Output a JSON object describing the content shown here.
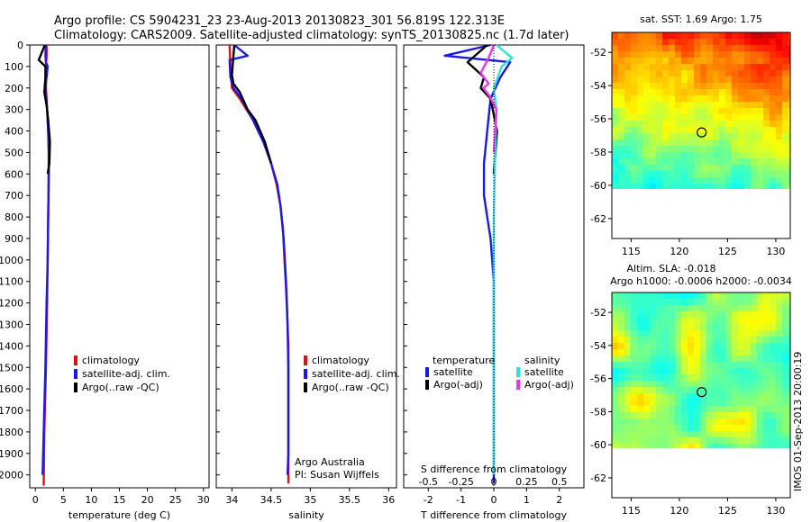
{
  "header": {
    "line1": "Argo profile: CS 5904231_23 23-Aug-2013 20130823_301 56.819S 122.313E",
    "line2": "Climatology: CARS2009. Satellite-adjusted climatology: synTS_20130825.nc (1.7d later)"
  },
  "colors": {
    "climatology": "#e01010",
    "satellite": "#1a1ae6",
    "argo": "#000000",
    "sal_satellite": "#33e0e0",
    "sal_argo": "#ee33ee"
  },
  "chart_data": [
    {
      "type": "line",
      "name": "temperature-profile",
      "xlabel": "temperature (deg C)",
      "xlim": [
        -1,
        31
      ],
      "xticks": [
        "0",
        "5",
        "10",
        "15",
        "20",
        "25",
        "30"
      ],
      "ylim": [
        2060,
        0
      ],
      "yticks": [
        "0",
        "100",
        "200",
        "300",
        "400",
        "500",
        "600",
        "700",
        "800",
        "900",
        "1000",
        "1100",
        "1200",
        "1300",
        "1400",
        "1500",
        "1600",
        "1700",
        "1800",
        "1900",
        "2000"
      ],
      "legend": [
        "climatology",
        "satellite-adj. clim.",
        "Argo(..raw -QC)"
      ],
      "series": [
        {
          "key": "climatology",
          "x": [
            2.0,
            2.0,
            1.9,
            1.9,
            2.1,
            2.3,
            2.4,
            2.4,
            2.3,
            2.2,
            2.1,
            1.9,
            1.6,
            1.5
          ],
          "y": [
            0,
            50,
            100,
            200,
            300,
            400,
            500,
            600,
            800,
            1000,
            1200,
            1500,
            1800,
            2050
          ]
        },
        {
          "key": "satellite",
          "x": [
            1.9,
            1.8,
            1.9,
            2.2,
            1.8,
            2.1,
            2.3,
            2.4,
            2.4,
            2.3,
            2.2,
            2.0,
            1.8,
            1.5,
            1.3
          ],
          "y": [
            0,
            50,
            80,
            100,
            200,
            300,
            400,
            500,
            600,
            800,
            1000,
            1200,
            1500,
            1800,
            2000
          ]
        },
        {
          "key": "argo",
          "x": [
            1.7,
            0.6,
            1.8,
            1.8,
            1.6,
            2.0,
            2.3,
            2.6,
            2.5,
            2.2
          ],
          "y": [
            0,
            70,
            100,
            150,
            220,
            280,
            350,
            450,
            550,
            600
          ]
        }
      ]
    },
    {
      "type": "line",
      "name": "salinity-profile",
      "xlabel": "salinity",
      "xlim": [
        33.8,
        36.1
      ],
      "xticks": [
        "34",
        "34.5",
        "35",
        "35.5",
        "36"
      ],
      "ylim": [
        2060,
        0
      ],
      "legend": [
        "climatology",
        "satellite-adj. clim.",
        "Argo(..raw -QC)"
      ],
      "annotation": [
        "Argo Australia",
        "PI: Susan Wijffels"
      ],
      "series": [
        {
          "key": "climatology",
          "x": [
            33.97,
            33.98,
            34.0,
            34.1,
            34.27,
            34.4,
            34.5,
            34.57,
            34.62,
            34.65,
            34.67,
            34.7,
            34.72,
            34.72,
            34.72
          ],
          "y": [
            0,
            100,
            200,
            250,
            350,
            450,
            550,
            650,
            750,
            850,
            1000,
            1200,
            1400,
            1700,
            2040
          ]
        },
        {
          "key": "satellite",
          "x": [
            34.03,
            34.2,
            33.97,
            33.98,
            34.02,
            34.12,
            34.27,
            34.4,
            34.5,
            34.58,
            34.62,
            34.66,
            34.69,
            34.71,
            34.72,
            34.72,
            34.72,
            34.71
          ],
          "y": [
            0,
            50,
            70,
            150,
            200,
            250,
            350,
            450,
            550,
            650,
            750,
            900,
            1100,
            1300,
            1500,
            1700,
            1900,
            2000
          ]
        },
        {
          "key": "argo",
          "x": [
            34.03,
            34.0,
            34.02,
            34.1,
            34.2,
            34.3,
            34.42,
            34.5
          ],
          "y": [
            0,
            140,
            180,
            220,
            300,
            350,
            450,
            550
          ]
        }
      ]
    },
    {
      "type": "line",
      "name": "difference-profile",
      "xlabel": "T difference from climatology",
      "xlabel_top": "S difference from climatology",
      "xlim": [
        -2.75,
        2.75
      ],
      "xticks": [
        "-2",
        "-1",
        "0",
        "1",
        "2"
      ],
      "xticks_top": [
        "-0.5",
        "-0.25",
        "0",
        "0.25",
        "0.5"
      ],
      "ylim": [
        2060,
        0
      ],
      "legend": {
        "temperature_title": "temperature",
        "salinity_title": "salinity",
        "t_satellite": "satellite",
        "t_argo": "Argo(-adj)",
        "s_satellite": "satellite",
        "s_argo": "Argo(-adj)"
      },
      "series": [
        {
          "key": "satellite",
          "x": [
            -0.1,
            -1.5,
            0.5,
            0.2,
            -0.1,
            -0.2,
            -0.3,
            -0.3,
            -0.2,
            -0.1,
            0.0,
            0.0,
            0.0
          ],
          "y": [
            0,
            50,
            80,
            150,
            250,
            400,
            550,
            700,
            800,
            900,
            1100,
            1500,
            2040
          ]
        },
        {
          "key": "argo",
          "x": [
            -0.2,
            -0.8,
            -0.3,
            -0.4,
            -0.1,
            0.1,
            0.0
          ],
          "y": [
            0,
            80,
            150,
            200,
            250,
            400,
            600
          ]
        },
        {
          "key": "sal_satellite",
          "x": [
            0.02,
            0.14,
            0.06,
            0.0,
            0.02,
            0.01,
            0.0,
            0.0,
            0.0
          ],
          "y": [
            0,
            60,
            100,
            200,
            300,
            500,
            800,
            1200,
            2000
          ]
        },
        {
          "key": "sal_argo",
          "x": [
            0.0,
            -0.04,
            -0.1,
            -0.04,
            -0.08,
            -0.03,
            0.02,
            0.0
          ],
          "y": [
            0,
            60,
            130,
            180,
            200,
            240,
            300,
            500
          ]
        }
      ]
    },
    {
      "type": "heatmap",
      "name": "sst-map",
      "title": "sat. SST: 1.69 Argo: 1.75",
      "xlim": [
        113,
        131.5
      ],
      "ylim": [
        -63.2,
        -50.8
      ],
      "xticks": [
        "115",
        "120",
        "125",
        "130"
      ],
      "yticks": [
        "-52",
        "-54",
        "-56",
        "-58",
        "-60",
        "-62"
      ],
      "data_bottom": -60.2,
      "marker": {
        "lon": 122.313,
        "lat": -56.819
      }
    },
    {
      "type": "heatmap",
      "name": "sla-map",
      "title": "Altim. SLA: -0.018",
      "subtitle": "Argo h1000: -0.0006 h2000: -0.0034",
      "xlim": [
        113,
        131.5
      ],
      "ylim": [
        -63.2,
        -50.8
      ],
      "xticks": [
        "115",
        "120",
        "125",
        "130"
      ],
      "yticks": [
        "-52",
        "-54",
        "-56",
        "-58",
        "-60",
        "-62"
      ],
      "data_bottom": -60.2,
      "marker": {
        "lon": 122.313,
        "lat": -56.819
      }
    }
  ],
  "footer": {
    "timestamp": "IMOS 01-Sep-2013 20:00:19"
  }
}
